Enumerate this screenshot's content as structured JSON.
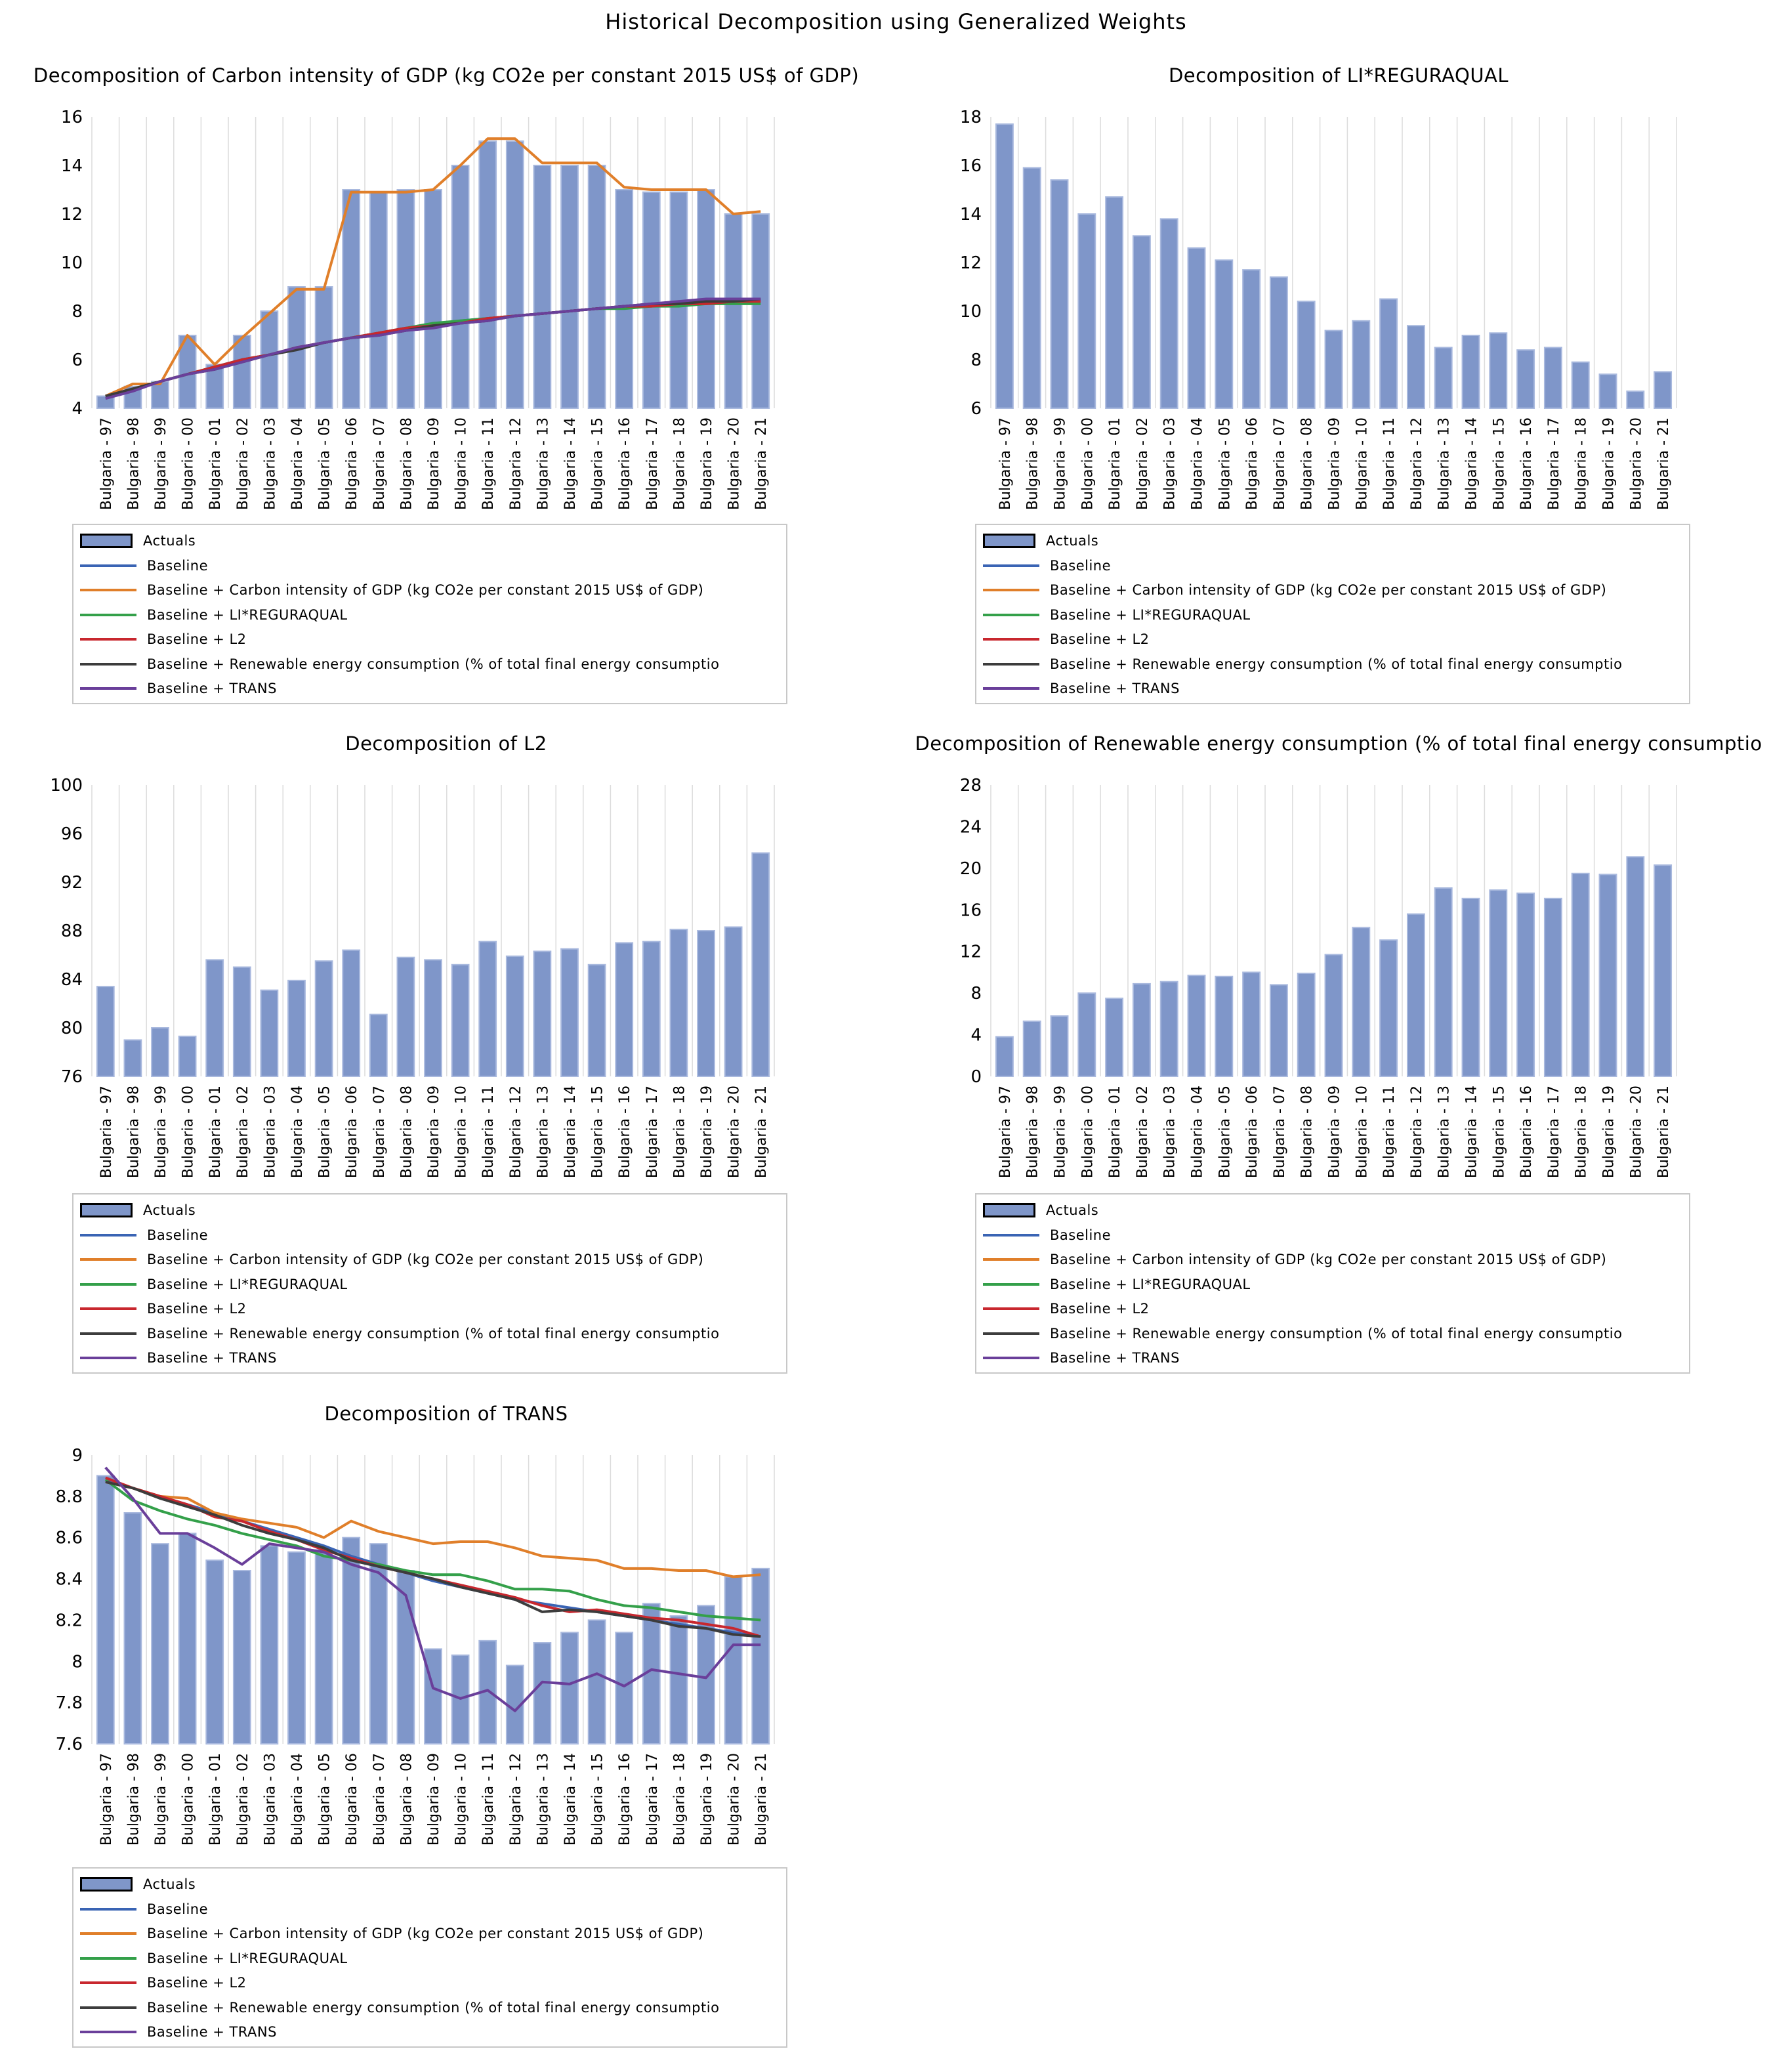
{
  "figure_title": "Historical Decomposition using Generalized Weights",
  "legend": {
    "actuals": "Actuals",
    "series_names": [
      "Baseline",
      "Baseline + Carbon intensity of GDP (kg CO2e per constant 2015 US$ of GDP)",
      "Baseline + LI*REGURAQUAL",
      "Baseline + L2",
      "Baseline + Renewable energy consumption (% of total final energy consumptio",
      "Baseline + TRANS"
    ]
  },
  "colors": {
    "actuals_fill": "#7f96c9",
    "actuals_edge": "#a9b9de",
    "baseline": "#3a64b4",
    "carbon": "#e07f2a",
    "regqual": "#34a04a",
    "l2": "#c8272e",
    "renewable": "#3c3c3c",
    "trans": "#6a3f9a"
  },
  "chart_data": [
    {
      "type": "bar+line",
      "title": "Decomposition of Carbon intensity of GDP (kg CO2e per constant 2015 US$ of GDP)",
      "categories": [
        "Bulgaria - 97",
        "Bulgaria - 98",
        "Bulgaria - 99",
        "Bulgaria - 00",
        "Bulgaria - 01",
        "Bulgaria - 02",
        "Bulgaria - 03",
        "Bulgaria - 04",
        "Bulgaria - 05",
        "Bulgaria - 06",
        "Bulgaria - 07",
        "Bulgaria - 08",
        "Bulgaria - 09",
        "Bulgaria - 10",
        "Bulgaria - 11",
        "Bulgaria - 12",
        "Bulgaria - 13",
        "Bulgaria - 14",
        "Bulgaria - 15",
        "Bulgaria - 16",
        "Bulgaria - 17",
        "Bulgaria - 18",
        "Bulgaria - 19",
        "Bulgaria - 20",
        "Bulgaria - 21"
      ],
      "ylim": [
        4,
        16
      ],
      "yticks": [
        4,
        6,
        8,
        10,
        12,
        14,
        16
      ],
      "actuals": [
        4.5,
        4.9,
        5.1,
        7.0,
        5.8,
        7.0,
        8.0,
        9.0,
        9.0,
        13.0,
        12.9,
        13.0,
        13.0,
        14.0,
        15.0,
        15.0,
        14.0,
        14.0,
        14.0,
        13.0,
        12.9,
        12.9,
        13.0,
        12.0,
        12.0
      ],
      "series": [
        {
          "name": "Baseline",
          "values": [
            4.5,
            4.8,
            5.1,
            5.4,
            5.7,
            6.0,
            6.2,
            6.5,
            6.7,
            6.9,
            7.1,
            7.3,
            7.4,
            7.6,
            7.7,
            7.8,
            7.9,
            8.0,
            8.1,
            8.2,
            8.2,
            8.3,
            8.3,
            8.4,
            8.4
          ]
        },
        {
          "name": "Baseline + Carbon intensity of GDP (kg CO2e per constant 2015 US$ of GDP)",
          "values": [
            4.5,
            5.0,
            5.0,
            7.0,
            5.8,
            6.9,
            7.9,
            8.9,
            8.9,
            12.9,
            12.9,
            12.9,
            13.0,
            14.0,
            15.1,
            15.1,
            14.1,
            14.1,
            14.1,
            13.1,
            13.0,
            13.0,
            13.0,
            12.0,
            12.1
          ]
        },
        {
          "name": "Baseline + LI*REGURAQUAL",
          "values": [
            4.5,
            4.8,
            5.1,
            5.4,
            5.7,
            6.0,
            6.2,
            6.5,
            6.7,
            6.9,
            7.1,
            7.3,
            7.5,
            7.6,
            7.7,
            7.8,
            7.9,
            8.0,
            8.1,
            8.1,
            8.2,
            8.2,
            8.3,
            8.3,
            8.3
          ]
        },
        {
          "name": "Baseline + L2",
          "values": [
            4.5,
            4.8,
            5.1,
            5.4,
            5.7,
            6.0,
            6.2,
            6.5,
            6.7,
            6.9,
            7.1,
            7.3,
            7.4,
            7.5,
            7.7,
            7.8,
            7.9,
            8.0,
            8.1,
            8.2,
            8.2,
            8.3,
            8.3,
            8.4,
            8.4
          ]
        },
        {
          "name": "Baseline + Renewable energy consumption (% of total final energy consumptio",
          "values": [
            4.5,
            4.8,
            5.1,
            5.4,
            5.6,
            5.9,
            6.2,
            6.4,
            6.7,
            6.9,
            7.0,
            7.2,
            7.4,
            7.5,
            7.6,
            7.8,
            7.9,
            8.0,
            8.1,
            8.2,
            8.3,
            8.3,
            8.4,
            8.4,
            8.5
          ]
        },
        {
          "name": "Baseline + TRANS",
          "values": [
            4.4,
            4.7,
            5.1,
            5.4,
            5.6,
            5.9,
            6.2,
            6.5,
            6.7,
            6.9,
            7.0,
            7.2,
            7.3,
            7.5,
            7.6,
            7.8,
            7.9,
            8.0,
            8.1,
            8.2,
            8.3,
            8.4,
            8.5,
            8.5,
            8.5
          ]
        }
      ]
    },
    {
      "type": "bar+line",
      "title": "Decomposition of LI*REGURAQUAL",
      "categories": [
        "Bulgaria - 97",
        "Bulgaria - 98",
        "Bulgaria - 99",
        "Bulgaria - 00",
        "Bulgaria - 01",
        "Bulgaria - 02",
        "Bulgaria - 03",
        "Bulgaria - 04",
        "Bulgaria - 05",
        "Bulgaria - 06",
        "Bulgaria - 07",
        "Bulgaria - 08",
        "Bulgaria - 09",
        "Bulgaria - 10",
        "Bulgaria - 11",
        "Bulgaria - 12",
        "Bulgaria - 13",
        "Bulgaria - 14",
        "Bulgaria - 15",
        "Bulgaria - 16",
        "Bulgaria - 17",
        "Bulgaria - 18",
        "Bulgaria - 19",
        "Bulgaria - 20",
        "Bulgaria - 21"
      ],
      "ylim": [
        6,
        18
      ],
      "yticks": [
        6,
        8,
        10,
        12,
        14,
        16,
        18
      ],
      "actuals": [
        17.7,
        15.9,
        15.4,
        14.0,
        14.7,
        13.1,
        13.8,
        12.6,
        12.1,
        11.7,
        11.4,
        10.4,
        9.2,
        9.6,
        10.5,
        9.4,
        8.5,
        9.0,
        9.1,
        8.4,
        8.5,
        7.9,
        7.4,
        6.7,
        7.5
      ]
    },
    {
      "type": "bar+line",
      "title": "Decomposition of L2",
      "categories": [
        "Bulgaria - 97",
        "Bulgaria - 98",
        "Bulgaria - 99",
        "Bulgaria - 00",
        "Bulgaria - 01",
        "Bulgaria - 02",
        "Bulgaria - 03",
        "Bulgaria - 04",
        "Bulgaria - 05",
        "Bulgaria - 06",
        "Bulgaria - 07",
        "Bulgaria - 08",
        "Bulgaria - 09",
        "Bulgaria - 10",
        "Bulgaria - 11",
        "Bulgaria - 12",
        "Bulgaria - 13",
        "Bulgaria - 14",
        "Bulgaria - 15",
        "Bulgaria - 16",
        "Bulgaria - 17",
        "Bulgaria - 18",
        "Bulgaria - 19",
        "Bulgaria - 20",
        "Bulgaria - 21"
      ],
      "ylim": [
        76,
        100
      ],
      "yticks": [
        76,
        80,
        84,
        88,
        92,
        96,
        100
      ],
      "actuals": [
        83.4,
        79.0,
        80.0,
        79.3,
        85.6,
        85.0,
        83.1,
        83.9,
        85.5,
        86.4,
        81.1,
        85.8,
        85.6,
        85.2,
        87.1,
        85.9,
        86.3,
        86.5,
        85.2,
        87.0,
        87.1,
        88.1,
        88.0,
        88.3,
        94.4
      ]
    },
    {
      "type": "bar+line",
      "title": "Decomposition of Renewable energy consumption (% of total final energy consumptio",
      "categories": [
        "Bulgaria - 97",
        "Bulgaria - 98",
        "Bulgaria - 99",
        "Bulgaria - 00",
        "Bulgaria - 01",
        "Bulgaria - 02",
        "Bulgaria - 03",
        "Bulgaria - 04",
        "Bulgaria - 05",
        "Bulgaria - 06",
        "Bulgaria - 07",
        "Bulgaria - 08",
        "Bulgaria - 09",
        "Bulgaria - 10",
        "Bulgaria - 11",
        "Bulgaria - 12",
        "Bulgaria - 13",
        "Bulgaria - 14",
        "Bulgaria - 15",
        "Bulgaria - 16",
        "Bulgaria - 17",
        "Bulgaria - 18",
        "Bulgaria - 19",
        "Bulgaria - 20",
        "Bulgaria - 21"
      ],
      "ylim": [
        0,
        28
      ],
      "yticks": [
        0,
        4,
        8,
        12,
        16,
        20,
        24,
        28
      ],
      "actuals": [
        3.8,
        5.3,
        5.8,
        8.0,
        7.5,
        8.9,
        9.1,
        9.7,
        9.6,
        10.0,
        8.8,
        9.9,
        11.7,
        14.3,
        13.1,
        15.6,
        18.1,
        17.1,
        17.9,
        17.6,
        17.1,
        19.5,
        19.4,
        21.1,
        20.3
      ]
    },
    {
      "type": "bar+line",
      "title": "Decomposition of TRANS",
      "categories": [
        "Bulgaria - 97",
        "Bulgaria - 98",
        "Bulgaria - 99",
        "Bulgaria - 00",
        "Bulgaria - 01",
        "Bulgaria - 02",
        "Bulgaria - 03",
        "Bulgaria - 04",
        "Bulgaria - 05",
        "Bulgaria - 06",
        "Bulgaria - 07",
        "Bulgaria - 08",
        "Bulgaria - 09",
        "Bulgaria - 10",
        "Bulgaria - 11",
        "Bulgaria - 12",
        "Bulgaria - 13",
        "Bulgaria - 14",
        "Bulgaria - 15",
        "Bulgaria - 16",
        "Bulgaria - 17",
        "Bulgaria - 18",
        "Bulgaria - 19",
        "Bulgaria - 20",
        "Bulgaria - 21"
      ],
      "ylim": [
        7.6,
        9.0
      ],
      "yticks": [
        7.6,
        7.8,
        8.0,
        8.2,
        8.4,
        8.6,
        8.8,
        9.0
      ],
      "actuals": [
        8.9,
        8.72,
        8.57,
        8.62,
        8.49,
        8.44,
        8.56,
        8.53,
        8.54,
        8.6,
        8.57,
        8.44,
        8.06,
        8.03,
        8.1,
        7.98,
        8.09,
        8.14,
        8.2,
        8.14,
        8.28,
        8.22,
        8.27,
        8.41,
        8.45
      ],
      "series": [
        {
          "name": "Baseline",
          "values": [
            8.88,
            8.84,
            8.8,
            8.76,
            8.72,
            8.68,
            8.64,
            8.6,
            8.56,
            8.51,
            8.47,
            8.43,
            8.39,
            8.36,
            8.33,
            8.3,
            8.28,
            8.26,
            8.24,
            8.22,
            8.2,
            8.18,
            8.16,
            8.14,
            8.12
          ]
        },
        {
          "name": "Baseline + Carbon intensity of GDP (kg CO2e per constant 2015 US$ of GDP)",
          "values": [
            8.87,
            8.84,
            8.8,
            8.79,
            8.72,
            8.69,
            8.67,
            8.65,
            8.6,
            8.68,
            8.63,
            8.6,
            8.57,
            8.58,
            8.58,
            8.55,
            8.51,
            8.5,
            8.49,
            8.45,
            8.45,
            8.44,
            8.44,
            8.41,
            8.42
          ]
        },
        {
          "name": "Baseline + LI*REGURAQUAL",
          "values": [
            8.88,
            8.78,
            8.73,
            8.69,
            8.66,
            8.62,
            8.59,
            8.56,
            8.51,
            8.49,
            8.47,
            8.44,
            8.42,
            8.42,
            8.39,
            8.35,
            8.35,
            8.34,
            8.3,
            8.27,
            8.26,
            8.24,
            8.22,
            8.21,
            8.2
          ]
        },
        {
          "name": "Baseline + L2",
          "values": [
            8.89,
            8.84,
            8.8,
            8.76,
            8.7,
            8.68,
            8.63,
            8.59,
            8.54,
            8.5,
            8.46,
            8.43,
            8.4,
            8.37,
            8.34,
            8.31,
            8.27,
            8.24,
            8.25,
            8.23,
            8.21,
            8.2,
            8.18,
            8.16,
            8.12
          ]
        },
        {
          "name": "Baseline + Renewable energy consumption (% of total final energy consumptio",
          "values": [
            8.87,
            8.84,
            8.79,
            8.75,
            8.71,
            8.66,
            8.62,
            8.59,
            8.55,
            8.49,
            8.46,
            8.43,
            8.4,
            8.36,
            8.33,
            8.3,
            8.24,
            8.25,
            8.24,
            8.22,
            8.2,
            8.17,
            8.16,
            8.13,
            8.12
          ]
        },
        {
          "name": "Baseline + TRANS",
          "values": [
            8.94,
            8.79,
            8.62,
            8.62,
            8.55,
            8.47,
            8.57,
            8.55,
            8.53,
            8.47,
            8.43,
            8.32,
            7.87,
            7.82,
            7.86,
            7.76,
            7.9,
            7.89,
            7.94,
            7.88,
            7.96,
            7.94,
            7.92,
            8.08,
            8.08
          ]
        }
      ]
    }
  ]
}
